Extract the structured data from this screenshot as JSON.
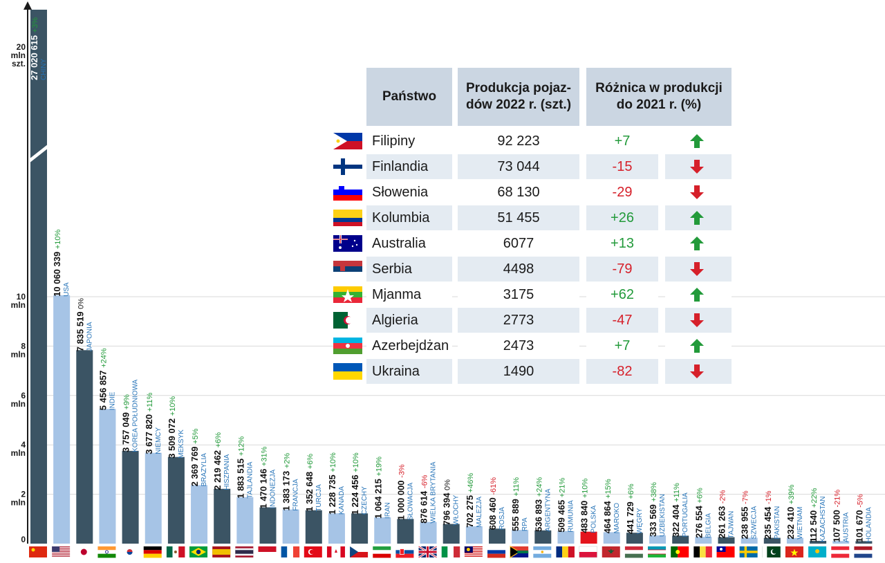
{
  "chart_data": {
    "type": "bar",
    "ylabels": [
      {
        "value": 0,
        "text": "0"
      },
      {
        "value": 2,
        "text": "2\nmln"
      },
      {
        "value": 4,
        "text": "4\nmln"
      },
      {
        "value": 6,
        "text": "6\nmln"
      },
      {
        "value": 8,
        "text": "8\nmln"
      },
      {
        "value": 10,
        "text": "10\nmln"
      },
      {
        "value": 20,
        "text": "20\nmln\nszt."
      }
    ],
    "bars": [
      {
        "country": "CHINY",
        "value": 27020615,
        "label": "27 020 615",
        "change": "+3%",
        "trend": "up",
        "shade": "dark"
      },
      {
        "country": "USA",
        "value": 10060339,
        "label": "10 060 339",
        "change": "+10%",
        "trend": "up",
        "shade": "light"
      },
      {
        "country": "JAPONIA",
        "value": 7835519,
        "label": "7 835 519",
        "change": "0%",
        "trend": "flat",
        "shade": "dark"
      },
      {
        "country": "INDIE",
        "value": 5456857,
        "label": "5 456 857",
        "change": "+24%",
        "trend": "up",
        "shade": "light"
      },
      {
        "country": "KOREA POŁUDNIOWA",
        "value": 3757049,
        "label": "3 757 049",
        "change": "+9%",
        "trend": "up",
        "shade": "dark"
      },
      {
        "country": "NIEMCY",
        "value": 3677820,
        "label": "3 677 820",
        "change": "+11%",
        "trend": "up",
        "shade": "light"
      },
      {
        "country": "MEKSYK",
        "value": 3509072,
        "label": "3 509 072",
        "change": "+10%",
        "trend": "up",
        "shade": "dark"
      },
      {
        "country": "BRAZYLIA",
        "value": 2369769,
        "label": "2 369 769",
        "change": "+5%",
        "trend": "up",
        "shade": "light"
      },
      {
        "country": "HISZPANIA",
        "value": 2219462,
        "label": "2 219 462",
        "change": "+6%",
        "trend": "up",
        "shade": "dark"
      },
      {
        "country": "TAJLANDIA",
        "value": 1883515,
        "label": "1 883 515",
        "change": "+12%",
        "trend": "up",
        "shade": "light"
      },
      {
        "country": "INDONEZJA",
        "value": 1470146,
        "label": "1 470 146",
        "change": "+31%",
        "trend": "up",
        "shade": "dark"
      },
      {
        "country": "FRANCJA",
        "value": 1383173,
        "label": "1 383 173",
        "change": "+2%",
        "trend": "up",
        "shade": "light"
      },
      {
        "country": "TURCJA",
        "value": 1352648,
        "label": "1 352 648",
        "change": "+6%",
        "trend": "up",
        "shade": "dark"
      },
      {
        "country": "KANADA",
        "value": 1228735,
        "label": "1 228 735",
        "change": "+10%",
        "trend": "up",
        "shade": "light"
      },
      {
        "country": "CZECHY",
        "value": 1224456,
        "label": "1 224 456",
        "change": "+10%",
        "trend": "up",
        "shade": "dark"
      },
      {
        "country": "IRAN",
        "value": 1064215,
        "label": "1 064 215",
        "change": "+19%",
        "trend": "up",
        "shade": "light"
      },
      {
        "country": "SŁOWACJA",
        "value": 1000000,
        "label": "1 000 000",
        "change": "-3%",
        "trend": "down",
        "shade": "dark"
      },
      {
        "country": "WIELKA BRYTANIA",
        "value": 876614,
        "label": "876 614",
        "change": "-6%",
        "trend": "down",
        "shade": "light"
      },
      {
        "country": "WŁOCHY",
        "value": 796394,
        "label": "796 394",
        "change": "0%",
        "trend": "flat",
        "shade": "dark"
      },
      {
        "country": "MALEZJA",
        "value": 702275,
        "label": "702 275",
        "change": "+46%",
        "trend": "up",
        "shade": "light"
      },
      {
        "country": "ROSJA",
        "value": 608460,
        "label": "608 460",
        "change": "-61%",
        "trend": "down",
        "shade": "dark"
      },
      {
        "country": "RPA",
        "value": 555889,
        "label": "555 889",
        "change": "+11%",
        "trend": "up",
        "shade": "light"
      },
      {
        "country": "ARGENTYNA",
        "value": 536893,
        "label": "536 893",
        "change": "+24%",
        "trend": "up",
        "shade": "dark"
      },
      {
        "country": "RUMUNIA",
        "value": 509465,
        "label": "509 465",
        "change": "+21%",
        "trend": "up",
        "shade": "light"
      },
      {
        "country": "POLSKA",
        "value": 483840,
        "label": "483 840",
        "change": "+10%",
        "trend": "up",
        "shade": "red",
        "highlight": true
      },
      {
        "country": "MAROKO",
        "value": 464864,
        "label": "464 864",
        "change": "+15%",
        "trend": "up",
        "shade": "light"
      },
      {
        "country": "WĘGRY",
        "value": 441729,
        "label": "441 729",
        "change": "+6%",
        "trend": "up",
        "shade": "dark"
      },
      {
        "country": "UZBEKISTAN",
        "value": 333569,
        "label": "333 569",
        "change": "+38%",
        "trend": "up",
        "shade": "light"
      },
      {
        "country": "PORTUGALIA",
        "value": 322404,
        "label": "322 404",
        "change": "+11%",
        "trend": "up",
        "shade": "dark"
      },
      {
        "country": "BELGIA",
        "value": 276554,
        "label": "276 554",
        "change": "+6%",
        "trend": "up",
        "shade": "light"
      },
      {
        "country": "TAJWAN",
        "value": 261263,
        "label": "261 263",
        "change": "-2%",
        "trend": "down",
        "shade": "dark"
      },
      {
        "country": "SZWECJA",
        "value": 238955,
        "label": "238 955",
        "change": "-7%",
        "trend": "down",
        "shade": "light"
      },
      {
        "country": "PAKISTAN",
        "value": 235454,
        "label": "235 454",
        "change": "-1%",
        "trend": "down",
        "shade": "dark"
      },
      {
        "country": "WIETNAM",
        "value": 232410,
        "label": "232 410",
        "change": "+39%",
        "trend": "up",
        "shade": "light"
      },
      {
        "country": "KAZACHSTAN",
        "value": 112540,
        "label": "112 540",
        "change": "+22%",
        "trend": "up",
        "shade": "dark"
      },
      {
        "country": "AUSTRIA",
        "value": 107500,
        "label": "107 500",
        "change": "-21%",
        "trend": "down",
        "shade": "light"
      },
      {
        "country": "HOLANDIA",
        "value": 101670,
        "label": "101 670",
        "change": "-5%",
        "trend": "down",
        "shade": "dark"
      }
    ],
    "table": {
      "headers": [
        "Państwo",
        "Produkcja pojaz-\ndów 2022 r. (szt.)",
        "Różnica w produkcji\ndo 2021 r. (%)"
      ],
      "rows": [
        {
          "country": "Filipiny",
          "production": "92 223",
          "change": "+7",
          "trend": "up"
        },
        {
          "country": "Finlandia",
          "production": "73 044",
          "change": "-15",
          "trend": "down"
        },
        {
          "country": "Słowenia",
          "production": "68 130",
          "change": "-29",
          "trend": "down"
        },
        {
          "country": "Kolumbia",
          "production": "51 455",
          "change": "+26",
          "trend": "up"
        },
        {
          "country": "Australia",
          "production": "6077",
          "change": "+13",
          "trend": "up"
        },
        {
          "country": "Serbia",
          "production": "4498",
          "change": "-79",
          "trend": "down"
        },
        {
          "country": "Mjanma",
          "production": "3175",
          "change": "+62",
          "trend": "up"
        },
        {
          "country": "Algieria",
          "production": "2773",
          "change": "-47",
          "trend": "down"
        },
        {
          "country": "Azerbejdżan",
          "production": "2473",
          "change": "+7",
          "trend": "up"
        },
        {
          "country": "Ukraina",
          "production": "1490",
          "change": "-82",
          "trend": "down"
        }
      ]
    }
  },
  "colors": {
    "dark_bar": "#3b5464",
    "light_bar": "#a6c4e6",
    "highlight_bar": "#e4141c",
    "label_blue": "#2774b8",
    "up_green": "#229a3a",
    "down_red": "#d6202a",
    "header_bg": "#cbd6e2",
    "row_bg": "#e4ebf2"
  },
  "flags": [
    {
      "country": "CHINY",
      "icon": "china-flag-icon"
    },
    {
      "country": "USA",
      "icon": "usa-flag-icon"
    },
    {
      "country": "JAPONIA",
      "icon": "japan-flag-icon"
    },
    {
      "country": "INDIE",
      "icon": "india-flag-icon"
    },
    {
      "country": "KOREA POŁUDNIOWA",
      "icon": "south-korea-flag-icon"
    },
    {
      "country": "NIEMCY",
      "icon": "germany-flag-icon"
    },
    {
      "country": "MEKSYK",
      "icon": "mexico-flag-icon"
    },
    {
      "country": "BRAZYLIA",
      "icon": "brazil-flag-icon"
    },
    {
      "country": "HISZPANIA",
      "icon": "spain-flag-icon"
    },
    {
      "country": "TAJLANDIA",
      "icon": "thailand-flag-icon"
    },
    {
      "country": "INDONEZJA",
      "icon": "indonesia-flag-icon"
    },
    {
      "country": "FRANCJA",
      "icon": "france-flag-icon"
    },
    {
      "country": "TURCJA",
      "icon": "turkey-flag-icon"
    },
    {
      "country": "KANADA",
      "icon": "canada-flag-icon"
    },
    {
      "country": "CZECHY",
      "icon": "czechia-flag-icon"
    },
    {
      "country": "IRAN",
      "icon": "iran-flag-icon"
    },
    {
      "country": "SŁOWACJA",
      "icon": "slovakia-flag-icon"
    },
    {
      "country": "WIELKA BRYTANIA",
      "icon": "uk-flag-icon"
    },
    {
      "country": "WŁOCHY",
      "icon": "italy-flag-icon"
    },
    {
      "country": "MALEZJA",
      "icon": "malaysia-flag-icon"
    },
    {
      "country": "ROSJA",
      "icon": "russia-flag-icon"
    },
    {
      "country": "RPA",
      "icon": "south-africa-flag-icon"
    },
    {
      "country": "ARGENTYNA",
      "icon": "argentina-flag-icon"
    },
    {
      "country": "RUMUNIA",
      "icon": "romania-flag-icon"
    },
    {
      "country": "POLSKA",
      "icon": "poland-flag-icon"
    },
    {
      "country": "MAROKO",
      "icon": "morocco-flag-icon"
    },
    {
      "country": "WĘGRY",
      "icon": "hungary-flag-icon"
    },
    {
      "country": "UZBEKISTAN",
      "icon": "uzbekistan-flag-icon"
    },
    {
      "country": "PORTUGALIA",
      "icon": "portugal-flag-icon"
    },
    {
      "country": "BELGIA",
      "icon": "belgium-flag-icon"
    },
    {
      "country": "TAJWAN",
      "icon": "taiwan-flag-icon"
    },
    {
      "country": "SZWECJA",
      "icon": "sweden-flag-icon"
    },
    {
      "country": "PAKISTAN",
      "icon": "pakistan-flag-icon"
    },
    {
      "country": "WIETNAM",
      "icon": "vietnam-flag-icon"
    },
    {
      "country": "KAZACHSTAN",
      "icon": "kazakhstan-flag-icon"
    },
    {
      "country": "AUSTRIA",
      "icon": "austria-flag-icon"
    },
    {
      "country": "HOLANDIA",
      "icon": "netherlands-flag-icon"
    }
  ]
}
